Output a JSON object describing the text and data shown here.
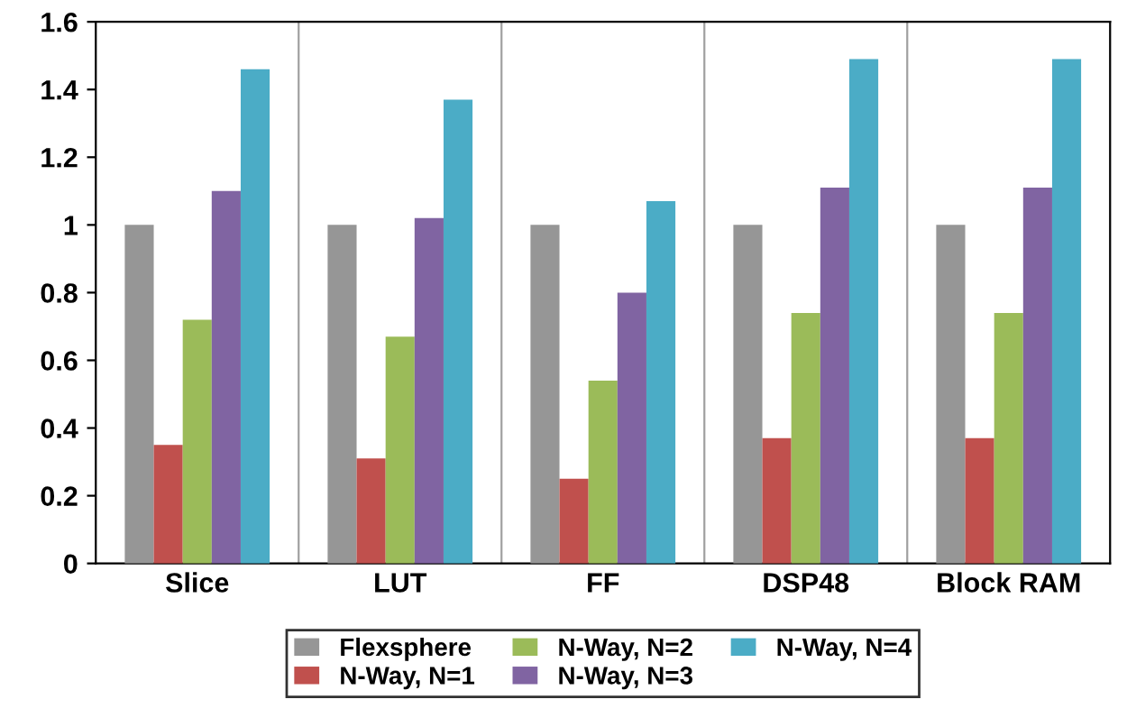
{
  "chart_data": {
    "type": "bar",
    "categories": [
      "Slice",
      "LUT",
      "FF",
      "DSP48",
      "Block RAM"
    ],
    "series": [
      {
        "name": "Flexsphere",
        "color": "#969696",
        "values": [
          1,
          1,
          1,
          1,
          1
        ]
      },
      {
        "name": "N-Way, N=1",
        "color": "#c0504d",
        "values": [
          0.35,
          0.31,
          0.25,
          0.37,
          0.37
        ]
      },
      {
        "name": "N-Way, N=2",
        "color": "#9bbb59",
        "values": [
          0.72,
          0.67,
          0.54,
          0.74,
          0.74
        ]
      },
      {
        "name": "N-Way, N=3",
        "color": "#8064a2",
        "values": [
          1.1,
          1.02,
          0.8,
          1.11,
          1.11
        ]
      },
      {
        "name": "N-Way, N=4",
        "color": "#4bacc6",
        "values": [
          1.46,
          1.37,
          1.07,
          1.49,
          1.49
        ]
      }
    ],
    "ylim": [
      0,
      1.6
    ],
    "yticks": [
      0,
      {
        "value": 0.2,
        "label": "0.2"
      },
      {
        "value": 0.4,
        "label": "0.4"
      },
      {
        "value": 0.6,
        "label": "0.6"
      },
      {
        "value": 0.8,
        "label": "0.8"
      },
      1,
      {
        "value": 1.2,
        "label": "1.2"
      },
      {
        "value": 1.4,
        "label": "1.4"
      },
      {
        "value": 1.6,
        "label": "1.6"
      }
    ],
    "grid": "x",
    "legend": "bottom"
  }
}
